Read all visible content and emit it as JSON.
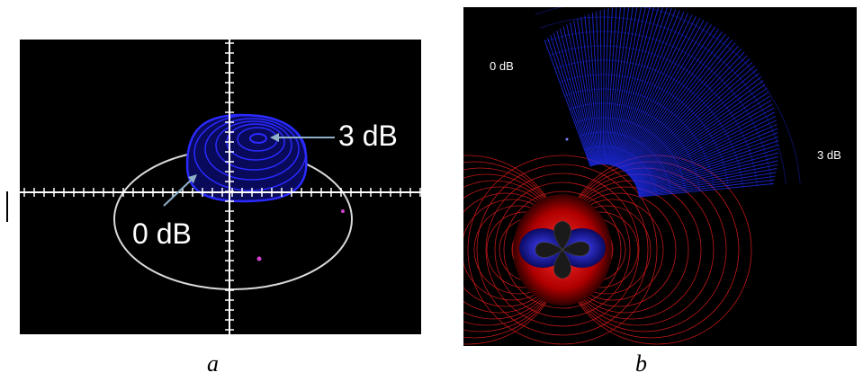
{
  "panel_a": {
    "label_3db": "3 dB",
    "label_0db": "0 dB",
    "caption": "a",
    "colors": {
      "background": "#000000",
      "axes": "#ffffff",
      "outline": "#d9d9d9",
      "contours": "#2a2aff",
      "marker": "#d040d0"
    }
  },
  "panel_b": {
    "label_0db": "0 dB",
    "label_3db": "3 dB",
    "caption": "b",
    "colors": {
      "background": "#000000",
      "fan": "#1f2fff",
      "mesh": "#c01818",
      "core": "#ff1010"
    }
  }
}
